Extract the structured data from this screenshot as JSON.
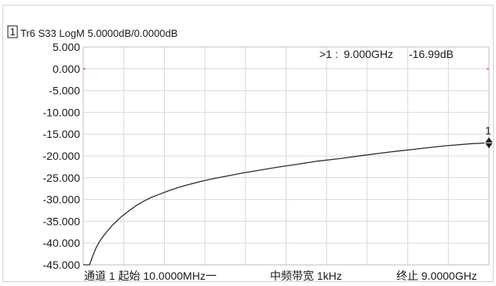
{
  "trace_header": {
    "window_number": "1",
    "trace_label": "Tr6 S33 LogM 5.0000dB/0.0000dB"
  },
  "marker_readout": {
    "marker": ">1 :",
    "frequency": "9.000GHz",
    "value": "-16.99dB"
  },
  "marker_label": "1",
  "footer": {
    "start": "通道 1 起始 10.0000MHz一",
    "ifbw": "中频带宽 1kHz",
    "stop": "终止 9.0000GHz"
  },
  "colors": {
    "trace": "#2e2e2e",
    "grid": "#d9d9d9",
    "reference_marker": "#ff6b6b",
    "frame": "#d3d3d3"
  },
  "chart_data": {
    "type": "line",
    "xlim": [
      0.01,
      9.0
    ],
    "ylim": [
      -45.0,
      5.0
    ],
    "x_divisions": 10,
    "y_ticks": [
      5.0,
      0.0,
      -5.0,
      -10.0,
      -15.0,
      -20.0,
      -25.0,
      -30.0,
      -35.0,
      -40.0,
      -45.0
    ],
    "y_tick_labels": [
      "5.000",
      "0.000",
      "-5.000",
      "-10.000",
      "-15.000",
      "-20.000",
      "-25.000",
      "-30.000",
      "-35.000",
      "-40.000",
      "-45.000"
    ],
    "reference_level": 0.0,
    "series": [
      {
        "x": [
          0.01,
          0.15,
          0.22,
          0.3,
          0.38,
          0.47,
          0.55,
          0.65,
          0.75,
          0.85,
          0.95,
          1.05,
          1.2,
          1.35,
          1.5,
          1.7,
          1.9,
          2.1,
          2.3,
          2.6,
          2.9,
          3.2,
          3.5,
          3.9,
          4.3,
          4.7,
          5.2,
          5.7,
          6.2,
          6.8,
          7.4,
          8.0,
          8.6,
          9.0
        ],
        "y": [
          -45.0,
          -45.0,
          -43.0,
          -41.0,
          -39.5,
          -38.2,
          -37.2,
          -36.0,
          -35.0,
          -34.0,
          -33.2,
          -32.4,
          -31.3,
          -30.4,
          -29.6,
          -28.8,
          -28.0,
          -27.3,
          -26.7,
          -25.9,
          -25.2,
          -24.6,
          -24.0,
          -23.3,
          -22.6,
          -22.0,
          -21.2,
          -20.6,
          -19.9,
          -19.1,
          -18.4,
          -17.7,
          -17.2,
          -16.99
        ]
      }
    ],
    "markers": [
      {
        "label": "1",
        "x": 9.0,
        "y": -16.99
      }
    ]
  }
}
